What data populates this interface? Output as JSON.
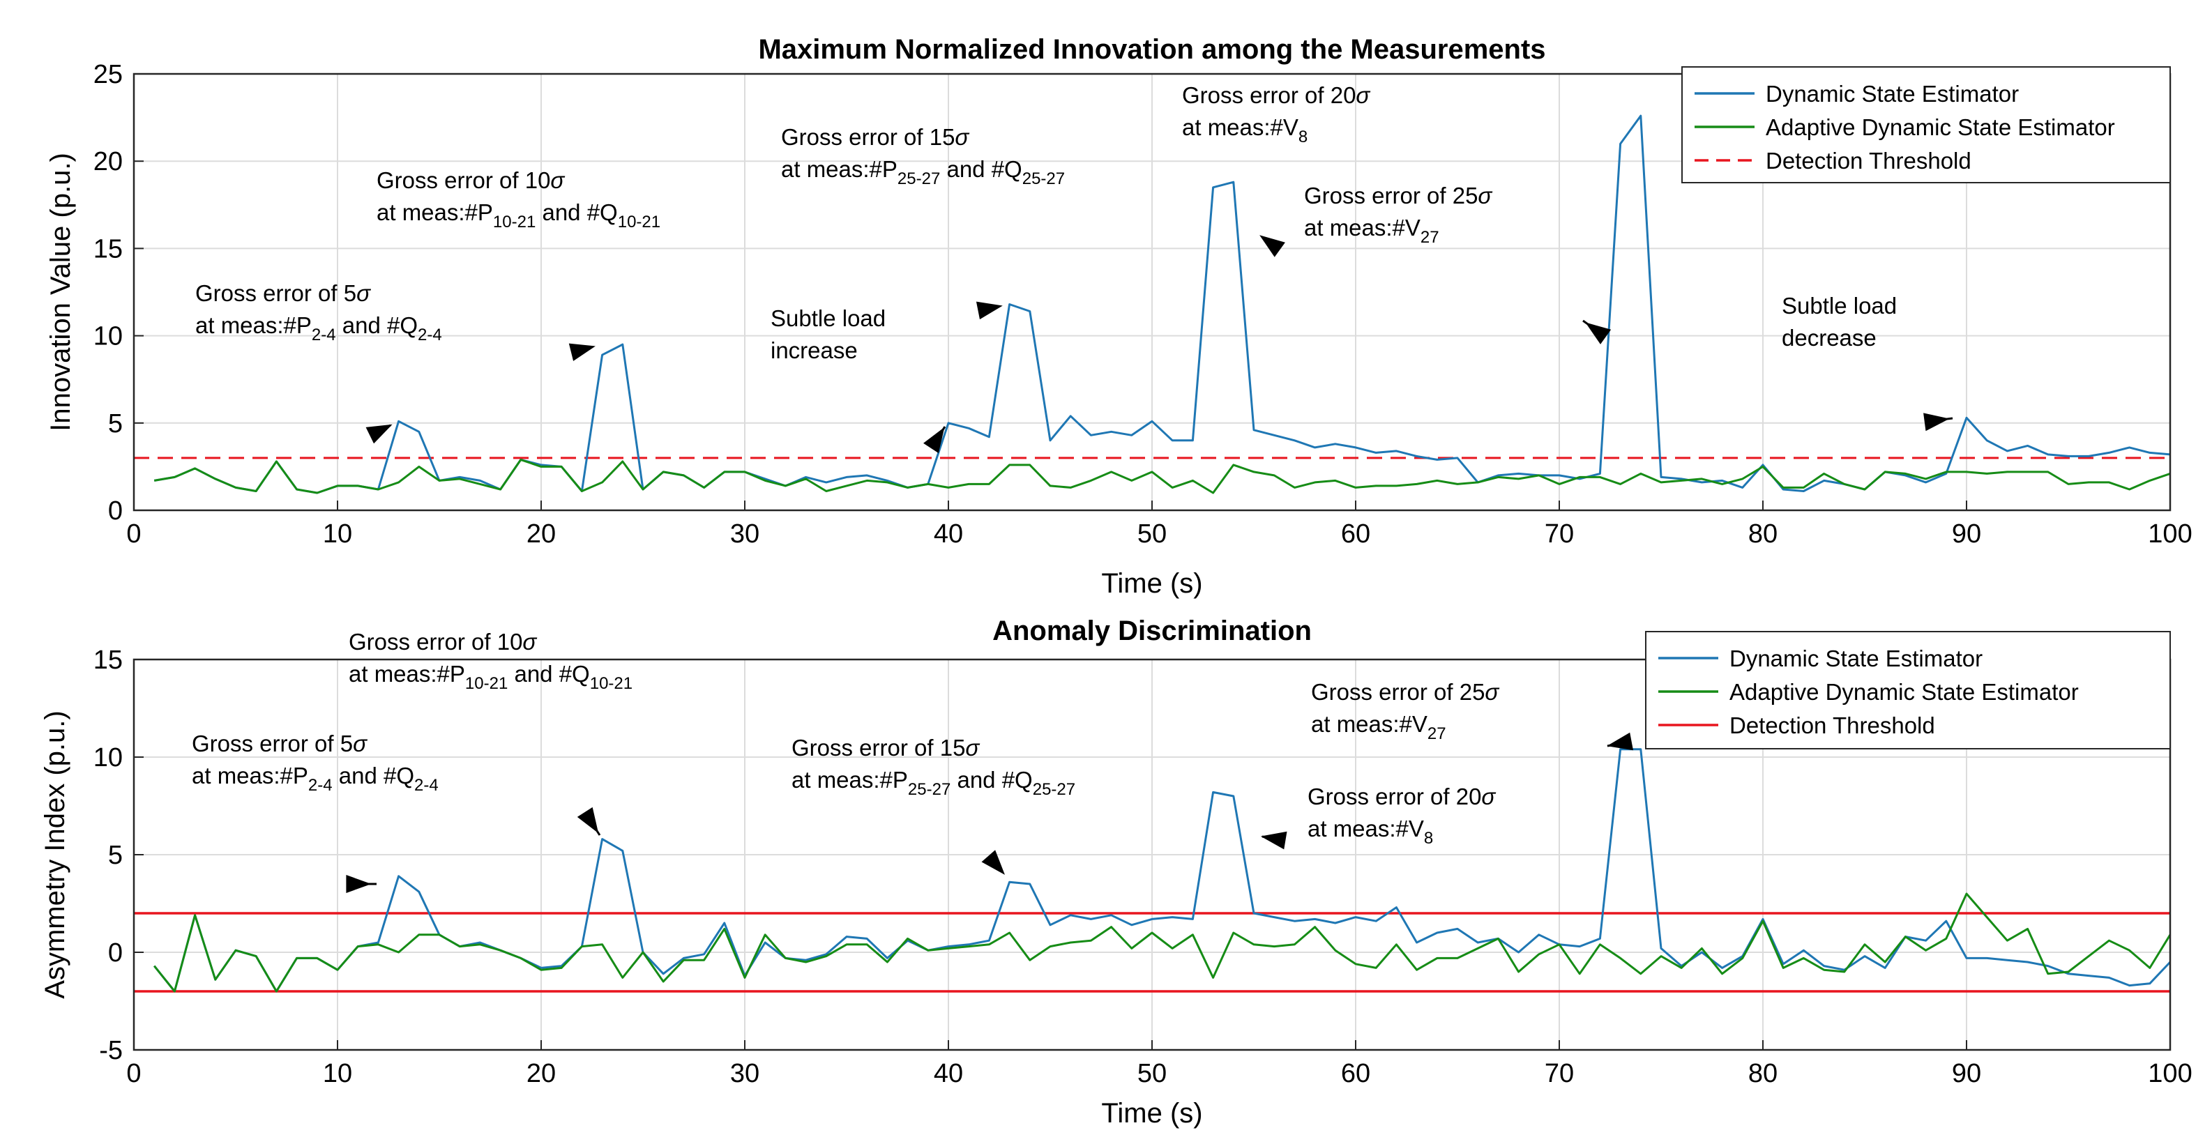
{
  "chart_data": [
    {
      "type": "line",
      "title": "Maximum Normalized Innovation among the Measurements",
      "xlabel": "Time (s)",
      "ylabel": "Innovation Value (p.u.)",
      "xlim": [
        0,
        100
      ],
      "ylim": [
        0,
        25
      ],
      "xticks": [
        "0",
        "10",
        "20",
        "30",
        "40",
        "50",
        "60",
        "70",
        "80",
        "90",
        "100"
      ],
      "yticks": [
        "0",
        "5",
        "10",
        "15",
        "20",
        "25"
      ],
      "grid": true,
      "legend_position": "top-right",
      "colors": {
        "dse": "#1f77b4",
        "adse": "#168c16",
        "threshold": "#e8151f"
      },
      "legend": [
        "Dynamic State Estimator",
        "Adaptive Dynamic State Estimator",
        "Detection Threshold"
      ],
      "threshold": 3,
      "x": [
        1,
        2,
        3,
        4,
        5,
        6,
        7,
        8,
        9,
        10,
        11,
        12,
        13,
        14,
        15,
        16,
        17,
        18,
        19,
        20,
        21,
        22,
        23,
        24,
        25,
        26,
        27,
        28,
        29,
        30,
        31,
        32,
        33,
        34,
        35,
        36,
        37,
        38,
        39,
        40,
        41,
        42,
        43,
        44,
        45,
        46,
        47,
        48,
        49,
        50,
        51,
        52,
        53,
        54,
        55,
        56,
        57,
        58,
        59,
        60,
        61,
        62,
        63,
        64,
        65,
        66,
        67,
        68,
        69,
        70,
        71,
        72,
        73,
        74,
        75,
        76,
        77,
        78,
        79,
        80,
        81,
        82,
        83,
        84,
        85,
        86,
        87,
        88,
        89,
        90,
        91,
        92,
        93,
        94,
        95,
        96,
        97,
        98,
        99,
        100
      ],
      "series": [
        {
          "name": "Dynamic State Estimator",
          "values": [
            1.7,
            1.9,
            2.4,
            1.8,
            1.3,
            1.1,
            2.8,
            1.2,
            1.0,
            1.4,
            1.4,
            1.2,
            5.1,
            4.5,
            1.7,
            1.9,
            1.7,
            1.2,
            2.9,
            2.6,
            2.5,
            1.1,
            8.9,
            9.5,
            1.2,
            2.2,
            2.0,
            1.3,
            2.2,
            2.2,
            1.8,
            1.4,
            1.9,
            1.6,
            1.9,
            2.0,
            1.7,
            1.3,
            1.5,
            5.0,
            4.7,
            4.2,
            11.8,
            11.4,
            4.0,
            5.4,
            4.3,
            4.5,
            4.3,
            5.1,
            4.0,
            4.0,
            18.5,
            18.8,
            4.6,
            4.3,
            4.0,
            3.6,
            3.8,
            3.6,
            3.3,
            3.4,
            3.1,
            2.9,
            3.0,
            1.6,
            2.0,
            2.1,
            2.0,
            2.0,
            1.8,
            2.1,
            21.0,
            22.6,
            1.9,
            1.8,
            1.6,
            1.7,
            1.3,
            2.6,
            1.2,
            1.1,
            1.7,
            1.5,
            1.2,
            2.2,
            2.0,
            1.6,
            2.1,
            5.3,
            4.0,
            3.4,
            3.7,
            3.2,
            3.1,
            3.1,
            3.3,
            3.6,
            3.3,
            3.2
          ]
        },
        {
          "name": "Adaptive Dynamic State Estimator",
          "values": [
            1.7,
            1.9,
            2.4,
            1.8,
            1.3,
            1.1,
            2.8,
            1.2,
            1.0,
            1.4,
            1.4,
            1.2,
            1.6,
            2.5,
            1.7,
            1.8,
            1.5,
            1.2,
            2.9,
            2.5,
            2.5,
            1.1,
            1.6,
            2.8,
            1.2,
            2.2,
            2.0,
            1.3,
            2.2,
            2.2,
            1.7,
            1.4,
            1.8,
            1.1,
            1.4,
            1.7,
            1.6,
            1.3,
            1.5,
            1.3,
            1.5,
            1.5,
            2.6,
            2.6,
            1.4,
            1.3,
            1.7,
            2.2,
            1.7,
            2.2,
            1.3,
            1.7,
            1.0,
            2.6,
            2.2,
            2.0,
            1.3,
            1.6,
            1.7,
            1.3,
            1.4,
            1.4,
            1.5,
            1.7,
            1.5,
            1.6,
            1.9,
            1.8,
            2.0,
            1.5,
            1.9,
            1.9,
            1.5,
            2.1,
            1.6,
            1.7,
            1.8,
            1.5,
            1.8,
            2.5,
            1.3,
            1.3,
            2.1,
            1.5,
            1.2,
            2.2,
            2.1,
            1.8,
            2.2,
            2.2,
            2.1,
            2.2,
            2.2,
            2.2,
            1.5,
            1.6,
            1.6,
            1.2,
            1.7,
            2.1
          ]
        }
      ],
      "annotations": [
        {
          "line1": "Gross error of 5",
          "sym1": "σ",
          "line2a": "at meas:#P",
          "sub2a": "2-4",
          "line2b": " and #Q",
          "sub2b": "2-4",
          "point_to": [
            13,
            5.1
          ]
        },
        {
          "line1": "Gross error of 10",
          "sym1": "σ",
          "line2a": "at meas:#P",
          "sub2a": "10-21",
          "line2b": " and #Q",
          "sub2b": "10-21",
          "point_to": [
            23,
            9.5
          ]
        },
        {
          "line1": "Subtle load",
          "line2a": "increase",
          "point_to": [
            40,
            5.1
          ]
        },
        {
          "line1": "Gross error of 15",
          "sym1": "σ",
          "line2a": "at meas:#P",
          "sub2a": "25-27",
          "line2b": " and #Q",
          "sub2b": "25-27",
          "point_to": [
            43,
            11.8
          ]
        },
        {
          "line1": "Gross error of 20",
          "sym1": "σ",
          "line2a": "at meas:#V",
          "sub2a": "8",
          "point_to": [
            55,
            16
          ]
        },
        {
          "line1": "Gross error of 25",
          "sym1": "σ",
          "line2a": "at meas:#V",
          "sub2a": "27",
          "point_to": [
            71,
            11
          ]
        },
        {
          "line1": "Subtle load",
          "line2a": "decrease",
          "point_to": [
            89.5,
            5.3
          ]
        }
      ]
    },
    {
      "type": "line",
      "title": "Anomaly Discrimination",
      "xlabel": "Time (s)",
      "ylabel": "Asymmetry Index (p.u.)",
      "xlim": [
        0,
        100
      ],
      "ylim": [
        -5,
        15
      ],
      "xticks": [
        "0",
        "10",
        "20",
        "30",
        "40",
        "50",
        "60",
        "70",
        "80",
        "90",
        "100"
      ],
      "yticks": [
        "-5",
        "0",
        "5",
        "10",
        "15"
      ],
      "grid": true,
      "legend_position": "top-right",
      "colors": {
        "dse": "#1f77b4",
        "adse": "#168c16",
        "threshold": "#e8151f"
      },
      "legend": [
        "Dynamic State Estimator",
        "Adaptive Dynamic State Estimator",
        "Detection Threshold"
      ],
      "threshold_upper": 2,
      "threshold_lower": -2,
      "x": [
        1,
        2,
        3,
        4,
        5,
        6,
        7,
        8,
        9,
        10,
        11,
        12,
        13,
        14,
        15,
        16,
        17,
        18,
        19,
        20,
        21,
        22,
        23,
        24,
        25,
        26,
        27,
        28,
        29,
        30,
        31,
        32,
        33,
        34,
        35,
        36,
        37,
        38,
        39,
        40,
        41,
        42,
        43,
        44,
        45,
        46,
        47,
        48,
        49,
        50,
        51,
        52,
        53,
        54,
        55,
        56,
        57,
        58,
        59,
        60,
        61,
        62,
        63,
        64,
        65,
        66,
        67,
        68,
        69,
        70,
        71,
        72,
        73,
        74,
        75,
        76,
        77,
        78,
        79,
        80,
        81,
        82,
        83,
        84,
        85,
        86,
        87,
        88,
        89,
        90,
        91,
        92,
        93,
        94,
        95,
        96,
        97,
        98,
        99,
        100
      ],
      "series": [
        {
          "name": "Dynamic State Estimator",
          "values": [
            -0.7,
            -2.0,
            1.9,
            -1.4,
            0.1,
            -0.2,
            -2.0,
            -0.3,
            -0.3,
            -0.9,
            0.3,
            0.5,
            3.9,
            3.1,
            0.9,
            0.3,
            0.5,
            0.1,
            -0.3,
            -0.8,
            -0.7,
            0.3,
            5.8,
            5.2,
            0.0,
            -1.1,
            -0.3,
            -0.1,
            1.5,
            -1.2,
            0.5,
            -0.3,
            -0.4,
            -0.1,
            0.8,
            0.7,
            -0.3,
            0.6,
            0.1,
            0.3,
            0.4,
            0.6,
            3.6,
            3.5,
            1.4,
            1.9,
            1.7,
            1.9,
            1.4,
            1.7,
            1.8,
            1.7,
            8.2,
            8.0,
            2.0,
            1.8,
            1.6,
            1.7,
            1.5,
            1.8,
            1.6,
            2.3,
            0.5,
            1.0,
            1.2,
            0.5,
            0.7,
            0.0,
            0.9,
            0.4,
            0.3,
            0.7,
            10.4,
            10.4,
            0.2,
            -0.7,
            0.0,
            -0.8,
            -0.2,
            1.7,
            -0.6,
            0.1,
            -0.7,
            -0.9,
            -0.2,
            -0.8,
            0.8,
            0.6,
            1.6,
            -0.3,
            -0.3,
            -0.4,
            -0.5,
            -0.7,
            -1.1,
            -1.2,
            -1.3,
            -1.7,
            -1.6,
            -0.5
          ]
        },
        {
          "name": "Adaptive Dynamic State Estimator",
          "values": [
            -0.7,
            -2.0,
            1.9,
            -1.4,
            0.1,
            -0.2,
            -2.0,
            -0.3,
            -0.3,
            -0.9,
            0.3,
            0.4,
            0.0,
            0.9,
            0.9,
            0.3,
            0.4,
            0.1,
            -0.3,
            -0.9,
            -0.8,
            0.3,
            0.4,
            -1.3,
            0.0,
            -1.5,
            -0.4,
            -0.4,
            1.2,
            -1.3,
            0.9,
            -0.3,
            -0.5,
            -0.2,
            0.4,
            0.4,
            -0.5,
            0.7,
            0.1,
            0.2,
            0.3,
            0.4,
            1.0,
            -0.4,
            0.3,
            0.5,
            0.6,
            1.3,
            0.2,
            1.0,
            0.2,
            0.9,
            -1.3,
            1.0,
            0.4,
            0.3,
            0.4,
            1.3,
            0.1,
            -0.6,
            -0.8,
            0.4,
            -0.9,
            -0.3,
            -0.3,
            0.2,
            0.7,
            -1.0,
            -0.1,
            0.4,
            -1.1,
            0.4,
            -0.3,
            -1.1,
            -0.2,
            -0.8,
            0.2,
            -1.1,
            -0.3,
            1.6,
            -0.8,
            -0.3,
            -0.9,
            -1.0,
            0.4,
            -0.5,
            0.8,
            0.1,
            0.7,
            3.0,
            1.8,
            0.6,
            1.2,
            -1.1,
            -1.0,
            -0.2,
            0.6,
            0.1,
            -0.8,
            0.9
          ]
        }
      ],
      "annotations": [
        {
          "line1": "Gross error of 5",
          "sym1": "σ",
          "line2a": "at meas:#P",
          "sub2a": "2-4",
          "line2b": " and #Q",
          "sub2b": "2-4",
          "point_to": [
            12,
            3.5
          ]
        },
        {
          "line1": "Gross error of 10",
          "sym1": "σ",
          "line2a": "at meas:#P",
          "sub2a": "10-21",
          "line2b": " and #Q",
          "sub2b": "10-21",
          "point_to": [
            23,
            5.8
          ]
        },
        {
          "line1": "Gross error of 15",
          "sym1": "σ",
          "line2a": "at meas:#P",
          "sub2a": "25-27",
          "line2b": " and #Q",
          "sub2b": "25-27",
          "point_to": [
            43,
            3.7
          ]
        },
        {
          "line1": "Gross error of 20",
          "sym1": "σ",
          "line2a": "at meas:#V",
          "sub2a": "8",
          "point_to": [
            55,
            6
          ]
        },
        {
          "line1": "Gross error of 25",
          "sym1": "σ",
          "line2a": "at meas:#V",
          "sub2a": "27",
          "point_to": [
            72,
            10.5
          ]
        }
      ]
    }
  ]
}
